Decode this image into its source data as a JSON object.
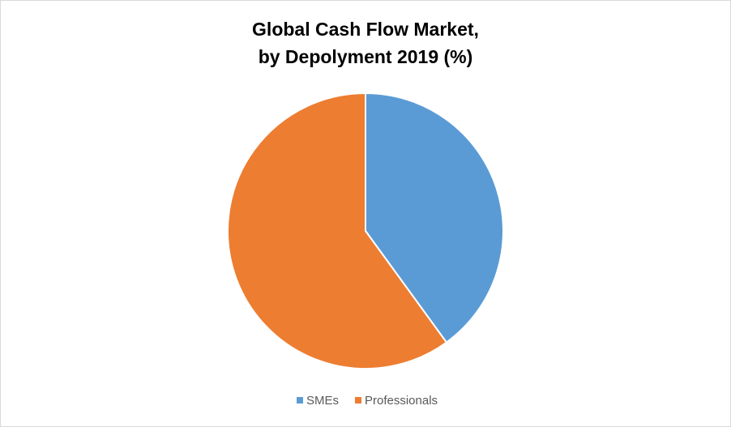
{
  "chart_data": {
    "type": "pie",
    "title": [
      "Global Cash Flow Market,",
      "by Depolyment 2019 (%)"
    ],
    "categories": [
      "SMEs",
      "Professionals"
    ],
    "values": [
      40,
      60
    ],
    "colors": [
      "#5b9bd5",
      "#ed7d31"
    ],
    "legend": "bottom"
  }
}
